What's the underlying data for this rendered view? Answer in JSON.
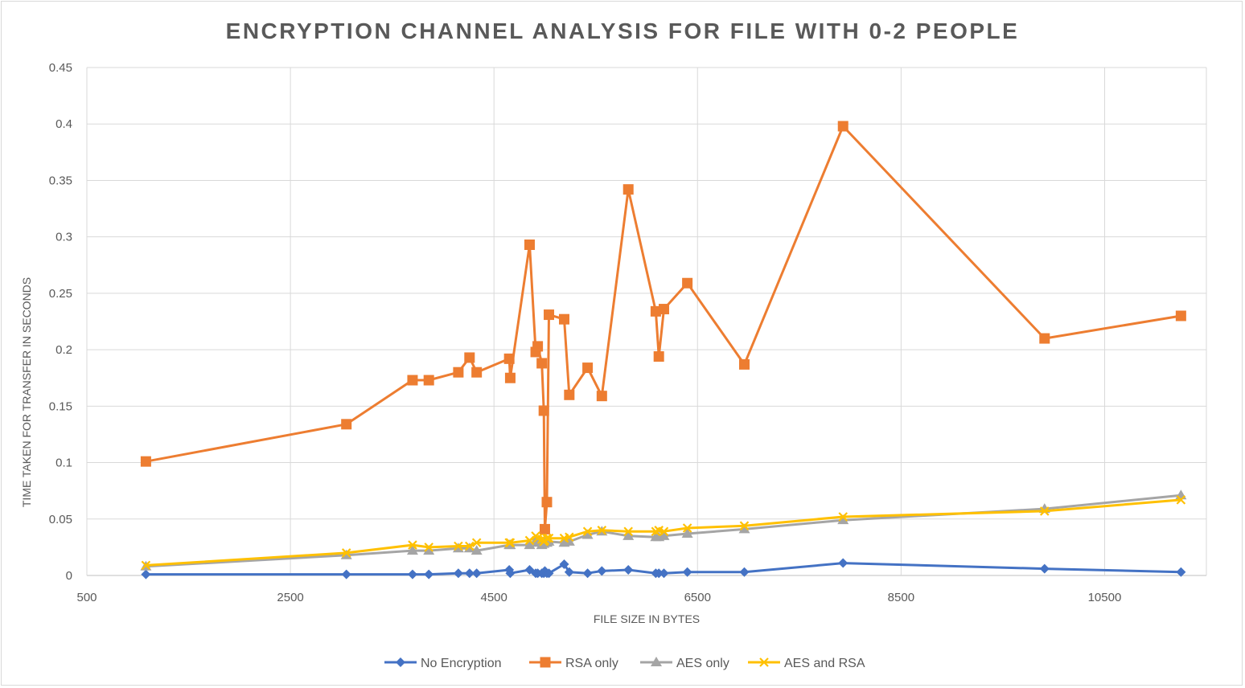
{
  "chart_data": {
    "type": "line",
    "title": "ENCRYPTION CHANNEL ANALYSIS FOR FILE WITH 0-2 PEOPLE",
    "xlabel": "FILE SIZE IN BYTES",
    "ylabel": "TIME TAKEN FOR TRANSFER IN SECONDS",
    "xlim": [
      500,
      11500
    ],
    "ylim": [
      0,
      0.45
    ],
    "xticks": [
      500,
      2500,
      4500,
      6500,
      8500,
      10500
    ],
    "xtick_labels": [
      "500",
      "2500",
      "4500",
      "6500",
      "8500",
      "10500"
    ],
    "yticks": [
      0,
      0.05,
      0.1,
      0.15,
      0.2,
      0.25,
      0.3,
      0.35,
      0.4,
      0.45
    ],
    "ytick_labels": [
      "0",
      "0.05",
      "0.1",
      "0.15",
      "0.2",
      "0.25",
      "0.3",
      "0.35",
      "0.4",
      "0.45"
    ],
    "grid": true,
    "legend": "bottom",
    "x": [
      1080,
      3050,
      3700,
      3860,
      4150,
      4260,
      4330,
      4650,
      4660,
      4850,
      4910,
      4930,
      4970,
      4990,
      5000,
      5020,
      5040,
      5190,
      5240,
      5420,
      5560,
      5820,
      6090,
      6120,
      6170,
      6400,
      6960,
      7930,
      9910,
      11250
    ],
    "series": [
      {
        "name": "No Encryption",
        "color": "#4472c4",
        "marker": "diamond",
        "values": [
          0.001,
          0.001,
          0.001,
          0.001,
          0.002,
          0.002,
          0.002,
          0.005,
          0.002,
          0.005,
          0.002,
          0.002,
          0.002,
          0.002,
          0.004,
          0.002,
          0.002,
          0.01,
          0.003,
          0.002,
          0.004,
          0.005,
          0.002,
          0.002,
          0.002,
          0.003,
          0.003,
          0.011,
          0.006,
          0.003
        ]
      },
      {
        "name": "RSA only",
        "color": "#ed7d31",
        "marker": "square",
        "values": [
          0.101,
          0.134,
          0.173,
          0.173,
          0.18,
          0.193,
          0.18,
          0.192,
          0.175,
          0.293,
          0.198,
          0.203,
          0.188,
          0.146,
          0.041,
          0.065,
          0.231,
          0.227,
          0.16,
          0.184,
          0.159,
          0.342,
          0.234,
          0.194,
          0.236,
          0.259,
          0.187,
          0.398,
          0.21,
          0.23
        ]
      },
      {
        "name": "AES only",
        "color": "#a5a5a5",
        "marker": "triangle",
        "values": [
          0.008,
          0.018,
          0.022,
          0.022,
          0.024,
          0.024,
          0.022,
          0.027,
          0.027,
          0.027,
          0.031,
          0.029,
          0.027,
          0.028,
          0.029,
          0.029,
          0.03,
          0.029,
          0.03,
          0.036,
          0.039,
          0.035,
          0.034,
          0.034,
          0.035,
          0.037,
          0.041,
          0.049,
          0.059,
          0.071
        ]
      },
      {
        "name": "AES and RSA",
        "color": "#ffc000",
        "marker": "x",
        "values": [
          0.009,
          0.02,
          0.027,
          0.025,
          0.026,
          0.026,
          0.029,
          0.029,
          0.029,
          0.031,
          0.035,
          0.033,
          0.032,
          0.03,
          0.031,
          0.033,
          0.033,
          0.033,
          0.034,
          0.039,
          0.04,
          0.039,
          0.039,
          0.04,
          0.039,
          0.042,
          0.044,
          0.052,
          0.057,
          0.067
        ]
      }
    ]
  }
}
